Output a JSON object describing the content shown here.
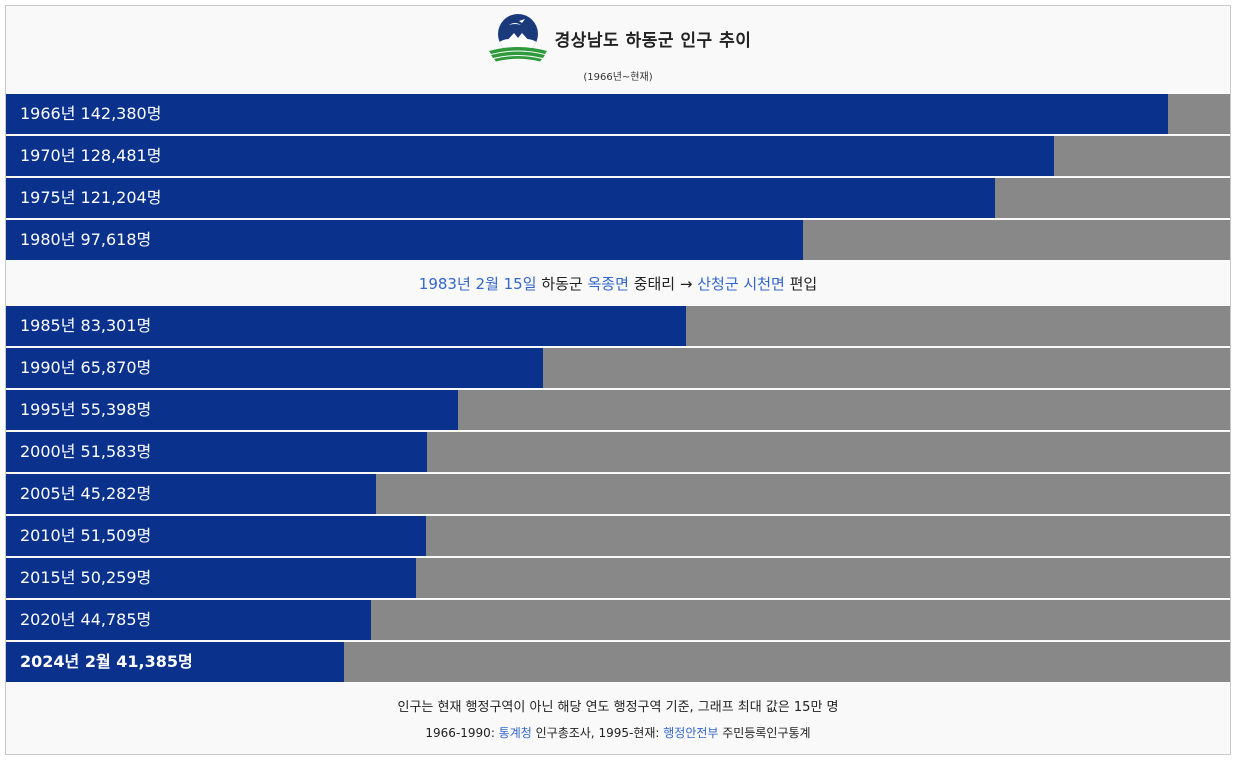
{
  "header": {
    "title": "경상남도 하동군 인구 추이",
    "subtitle": "(1966년~현재)",
    "emblem_icon": "hadong-county-emblem"
  },
  "colors": {
    "bar": "#0a318c",
    "track": "#888888",
    "link": "#3366cc"
  },
  "chart_data": {
    "type": "bar",
    "orientation": "horizontal",
    "max": 150000,
    "categories": [
      "1966년",
      "1970년",
      "1975년",
      "1980년",
      "1985년",
      "1990년",
      "1995년",
      "2000년",
      "2005년",
      "2010년",
      "2015년",
      "2020년",
      "2024년 2월"
    ],
    "values": [
      142380,
      128481,
      121204,
      97618,
      83301,
      65870,
      55398,
      51583,
      45282,
      51509,
      50259,
      44785,
      41385
    ],
    "labels": [
      "1966년 142,380명",
      "1970년 128,481명",
      "1975년 121,204명",
      "1980년 97,618명",
      "1985년 83,301명",
      "1990년 65,870명",
      "1995년 55,398명",
      "2000년 51,583명",
      "2005년 45,282명",
      "2010년 51,509명",
      "2015년 50,259명",
      "2020년 44,785명",
      "2024년 2월 41,385명"
    ]
  },
  "note": {
    "date": "1983년 2월 15일",
    "county": "하동군",
    "from_myeon": "옥종면",
    "village": "중태리",
    "arrow": "→",
    "to": "산청군 시천면",
    "action": "편입"
  },
  "footer": {
    "line1": "인구는 현재 행정구역이 아닌 해당 연도 행정구역 기준, 그래프 최대 값은 15만 명",
    "line2_prefix": "1966-1990: ",
    "line2_link1": "통계청",
    "line2_mid": " 인구총조사, 1995-현재: ",
    "line2_link2": "행정안전부",
    "line2_suffix": " 주민등록인구통계"
  }
}
